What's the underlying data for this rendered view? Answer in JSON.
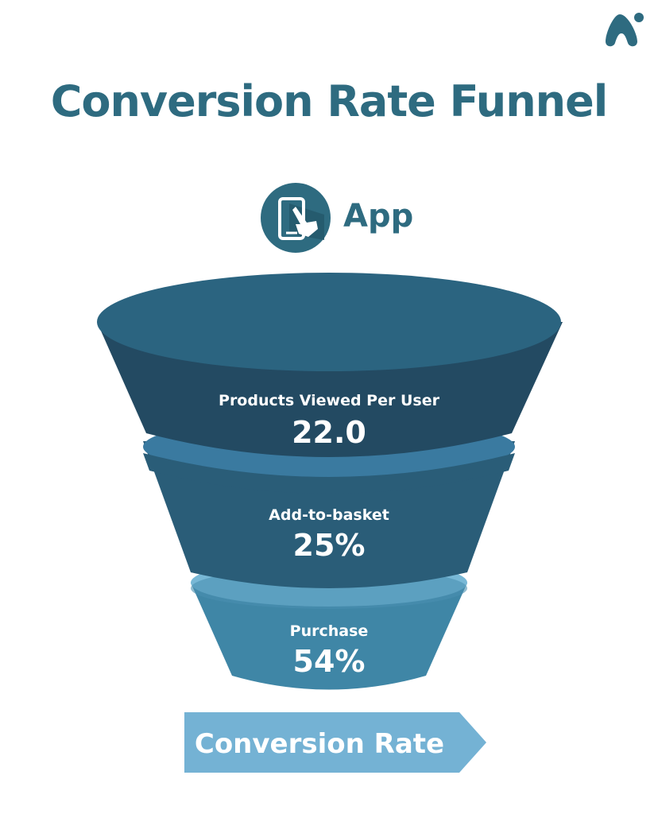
{
  "header": {
    "title": "Conversion Rate Funnel",
    "logo_icon": "brand-logo-icon"
  },
  "platform": {
    "label": "App",
    "icon": "mobile-tap-icon"
  },
  "funnel": {
    "stages": [
      {
        "label": "Products Viewed Per User",
        "value": "22.0"
      },
      {
        "label": "Add-to-basket",
        "value": "25%"
      },
      {
        "label": "Purchase",
        "value": "54%"
      }
    ]
  },
  "footer": {
    "banner_label": "Conversion Rate"
  },
  "colors": {
    "title": "#2e6b80",
    "stage_1": "#234a62",
    "stage_1_top": "#2b6480",
    "stage_2": "#2a5d78",
    "stage_2_top": "#3a7aa0",
    "stage_3": "#3f86a6",
    "stage_3_top": "#78b8d6",
    "banner": "#74b2d4"
  }
}
